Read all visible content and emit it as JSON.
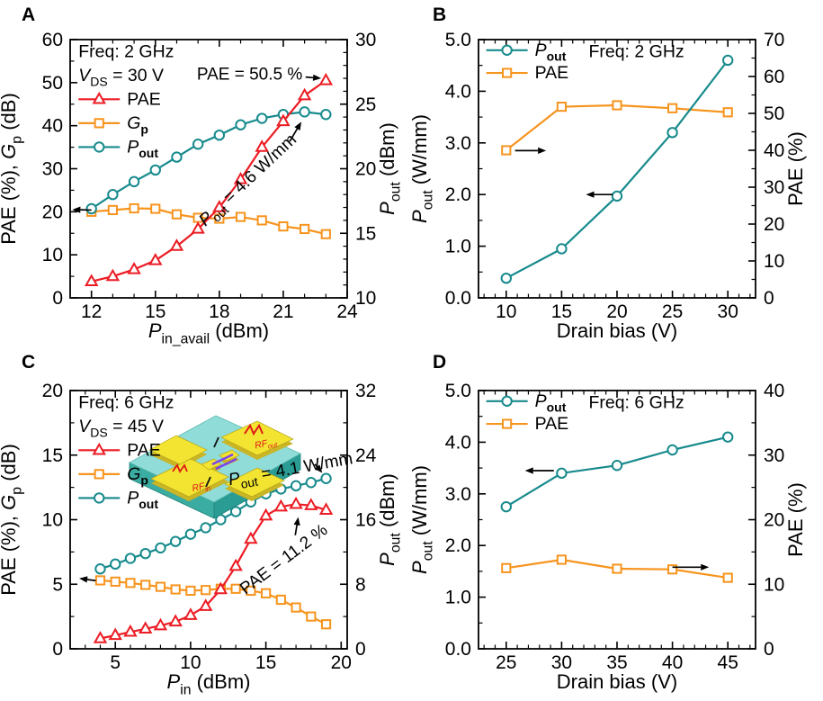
{
  "figure": {
    "background": "#ffffff",
    "text_color": "#000000"
  },
  "colors": {
    "pae_red": "#EC1C24",
    "gp_orange": "#F7941E",
    "pout_teal": "#178A8C",
    "annotation_black": "#000000"
  },
  "chart_data": [
    {
      "id": "A",
      "type": "line",
      "panel_texts": [
        {
          "plain": "Freq: 2 GHz",
          "segs": [
            [
              "Freq: 2 GHz",
              ""
            ]
          ],
          "fx": 0.03,
          "fy": 0.068,
          "anchor": "start"
        },
        {
          "plain": "V_DS = 30 V",
          "segs": [
            [
              "V",
              "i"
            ],
            [
              "DS",
              "s"
            ],
            [
              " = 30 V",
              ""
            ]
          ],
          "fx": 0.03,
          "fy": 0.16,
          "anchor": "start"
        }
      ],
      "x_axis": {
        "plain": "P_in_avail (dBm)",
        "segs": [
          [
            "P",
            "i"
          ],
          [
            "in_avail",
            "s"
          ],
          [
            " (dBm)",
            ""
          ]
        ],
        "lim": [
          11,
          24
        ],
        "majors": [
          12,
          15,
          18,
          21,
          24
        ],
        "minor_step": 1,
        "fmt": "int"
      },
      "y_left": {
        "plain": "PAE (%), G_p (dB)",
        "segs": [
          [
            "PAE (%), ",
            ""
          ],
          [
            "G",
            "i"
          ],
          [
            "p",
            "s"
          ],
          [
            " (dB)",
            ""
          ]
        ],
        "lim": [
          0,
          60
        ],
        "majors": [
          0,
          10,
          20,
          30,
          40,
          50,
          60
        ],
        "minor_step": 5,
        "fmt": "int"
      },
      "y_right": {
        "plain": "P_out (dBm)",
        "segs": [
          [
            "P",
            "i"
          ],
          [
            "out",
            "s"
          ],
          [
            " (dBm)",
            ""
          ]
        ],
        "lim": [
          10,
          30
        ],
        "majors": [
          10,
          15,
          20,
          25,
          30
        ],
        "minor_step": 1,
        "fmt": "int"
      },
      "series": [
        {
          "name": "PAE",
          "legend_segs": [
            [
              "PAE",
              ""
            ]
          ],
          "axis": "left",
          "marker": "triangle",
          "color_key": "pae_red",
          "z": 2,
          "x": [
            12,
            13,
            14,
            15,
            16,
            17,
            18,
            19,
            20,
            21,
            22,
            23
          ],
          "y": [
            3.8,
            5.0,
            6.6,
            8.7,
            12.0,
            16.0,
            21.0,
            27.5,
            35.0,
            41.0,
            47.0,
            50.5
          ]
        },
        {
          "name": "G_p",
          "legend_segs": [
            [
              "G",
              "i"
            ],
            [
              "p",
              "bs"
            ]
          ],
          "axis": "left",
          "marker": "square",
          "color_key": "gp_orange",
          "z": 0,
          "x": [
            12,
            13,
            14,
            15,
            16,
            17,
            18,
            19,
            20,
            21,
            22,
            23
          ],
          "y": [
            20.0,
            20.4,
            20.8,
            20.7,
            19.4,
            18.6,
            18.4,
            18.8,
            18.0,
            16.6,
            16.0,
            14.8
          ]
        },
        {
          "name": "P_out",
          "legend_segs": [
            [
              "P",
              "i"
            ],
            [
              "out",
              "bs"
            ]
          ],
          "axis": "right",
          "marker": "circle",
          "color_key": "pout_teal",
          "z": 1,
          "x": [
            12,
            13,
            14,
            15,
            16,
            17,
            18,
            19,
            20,
            21,
            22,
            23
          ],
          "y": [
            16.9,
            18.0,
            19.0,
            19.9,
            20.9,
            21.9,
            22.6,
            23.4,
            23.9,
            24.2,
            24.4,
            24.2
          ]
        }
      ],
      "legend": {
        "fx": 0.03,
        "fy": 0.252,
        "dfy": 0.0925
      },
      "annotations": [
        {
          "plain": "PAE = 50.5 %",
          "segs": [
            [
              "PAE = 50.5 %",
              ""
            ]
          ],
          "x": 21.9,
          "y": 50.7,
          "rot": 0,
          "anchor": "end"
        },
        {
          "plain": "P_out = 4.6 W/mm",
          "segs": [
            [
              "P",
              "i"
            ],
            [
              "out",
              "s"
            ],
            [
              " = 4.6 W/mm",
              ""
            ]
          ],
          "x": 19.5,
          "y": 26.5,
          "rot": -43,
          "anchor": "middle"
        }
      ],
      "arrows": [
        [
          22.05,
          51.3,
          22.78,
          51.0
        ],
        [
          21.3,
          36.3,
          21.85,
          40.9
        ],
        [
          12.0,
          20.4,
          11.1,
          20.5
        ]
      ]
    },
    {
      "id": "B",
      "type": "line",
      "panel_texts": [
        {
          "plain": "Freq: 2 GHz",
          "segs": [
            [
              "Freq: 2 GHz",
              ""
            ]
          ],
          "fx": 0.57,
          "fy": 0.068,
          "anchor": "middle"
        }
      ],
      "x_axis": {
        "plain": "Drain bias (V)",
        "segs": [
          [
            "Drain bias (V)",
            ""
          ]
        ],
        "lim": [
          7.5,
          32.5
        ],
        "majors": [
          10,
          15,
          20,
          25,
          30
        ],
        "minor_step": 1,
        "fmt": "int"
      },
      "y_left": {
        "plain": "P_out (W/mm)",
        "segs": [
          [
            "P",
            "i"
          ],
          [
            "out",
            "s"
          ],
          [
            " (W/mm)",
            ""
          ]
        ],
        "lim": [
          0,
          5
        ],
        "majors": [
          0,
          1,
          2,
          3,
          4,
          5
        ],
        "minor_step": 0.5,
        "fmt": "1f"
      },
      "y_right": {
        "plain": "PAE (%)",
        "segs": [
          [
            "PAE (%)",
            ""
          ]
        ],
        "lim": [
          0,
          70
        ],
        "majors": [
          0,
          10,
          20,
          30,
          40,
          50,
          60,
          70
        ],
        "minor_step": 5,
        "fmt": "int"
      },
      "series": [
        {
          "name": "P_out",
          "legend_segs": [
            [
              "P",
              "i"
            ],
            [
              "out",
              "bs"
            ]
          ],
          "axis": "left",
          "marker": "circle",
          "color_key": "pout_teal",
          "z": 1,
          "x": [
            10,
            15,
            20,
            25,
            30
          ],
          "y": [
            0.38,
            0.95,
            1.97,
            3.2,
            4.6
          ]
        },
        {
          "name": "PAE",
          "legend_segs": [
            [
              "PAE",
              ""
            ]
          ],
          "axis": "right",
          "marker": "square",
          "color_key": "gp_orange",
          "z": 0,
          "x": [
            10,
            15,
            20,
            25,
            30
          ],
          "y": [
            40.0,
            51.8,
            52.2,
            51.4,
            50.3
          ]
        }
      ],
      "legend": {
        "fx": 0.028,
        "fy": 0.062,
        "dfy": 0.088
      },
      "annotations": [],
      "arrows": [
        [
          10.8,
          2.85,
          13.6,
          2.85
        ],
        [
          19.6,
          2.0,
          17.2,
          2.0
        ]
      ]
    },
    {
      "id": "C",
      "type": "line",
      "panel_texts": [
        {
          "plain": "Freq: 6 GHz",
          "segs": [
            [
              "Freq: 6 GHz",
              ""
            ]
          ],
          "fx": 0.03,
          "fy": 0.068,
          "anchor": "start"
        },
        {
          "plain": "V_DS = 45 V",
          "segs": [
            [
              "V",
              "i"
            ],
            [
              "DS",
              "s"
            ],
            [
              " = 45 V",
              ""
            ]
          ],
          "fx": 0.03,
          "fy": 0.16,
          "anchor": "start"
        }
      ],
      "x_axis": {
        "plain": "P_in (dBm)",
        "segs": [
          [
            "P",
            "i"
          ],
          [
            "in",
            "s"
          ],
          [
            " (dBm)",
            ""
          ]
        ],
        "lim": [
          2,
          20.4
        ],
        "majors": [
          5,
          10,
          15,
          20
        ],
        "minor_step": 1,
        "fmt": "int"
      },
      "y_left": {
        "plain": "PAE (%), G_p (dB)",
        "segs": [
          [
            "PAE (%), ",
            ""
          ],
          [
            "G",
            "i"
          ],
          [
            "p",
            "s"
          ],
          [
            " (dB)",
            ""
          ]
        ],
        "lim": [
          0,
          20
        ],
        "majors": [
          0,
          5,
          10,
          15,
          20
        ],
        "minor_step": 2.5,
        "fmt": "int"
      },
      "y_right": {
        "plain": "P_out (dBm)",
        "segs": [
          [
            "P",
            "i"
          ],
          [
            "out",
            "s"
          ],
          [
            " (dBm)",
            ""
          ]
        ],
        "lim": [
          0,
          32
        ],
        "majors": [
          0,
          8,
          16,
          24,
          32
        ],
        "minor_step": 4,
        "fmt": "int"
      },
      "series": [
        {
          "name": "PAE",
          "legend_segs": [
            [
              "PAE",
              ""
            ]
          ],
          "axis": "left",
          "marker": "triangle",
          "color_key": "pae_red",
          "z": 2,
          "x": [
            4,
            5,
            6,
            7,
            8,
            9,
            10,
            11,
            12,
            13,
            14,
            15,
            16,
            17,
            18,
            19
          ],
          "y": [
            0.8,
            1.05,
            1.3,
            1.55,
            1.8,
            2.1,
            2.6,
            3.3,
            4.6,
            6.4,
            8.5,
            10.3,
            11.0,
            11.2,
            11.1,
            10.75
          ]
        },
        {
          "name": "G_p",
          "legend_segs": [
            [
              "G",
              "i"
            ],
            [
              "p",
              "bs"
            ]
          ],
          "axis": "left",
          "marker": "square",
          "color_key": "gp_orange",
          "z": 0,
          "x": [
            4,
            5,
            6,
            7,
            8,
            9,
            10,
            11,
            12,
            13,
            14,
            15,
            16,
            17,
            18,
            19
          ],
          "y": [
            5.3,
            5.2,
            5.1,
            4.95,
            4.8,
            4.6,
            4.5,
            4.55,
            4.65,
            4.65,
            4.5,
            4.3,
            3.8,
            3.2,
            2.5,
            1.9
          ]
        },
        {
          "name": "P_out",
          "legend_segs": [
            [
              "P",
              "i"
            ],
            [
              "out",
              "bs"
            ]
          ],
          "axis": "right",
          "marker": "circle",
          "color_key": "pout_teal",
          "z": 1,
          "x": [
            4,
            5,
            6,
            7,
            8,
            9,
            10,
            11,
            12,
            13,
            14,
            15,
            16,
            17,
            18,
            19
          ],
          "y": [
            9.9,
            10.5,
            11.2,
            11.8,
            12.5,
            13.3,
            14.2,
            15.0,
            16.0,
            17.0,
            18.2,
            19.2,
            19.8,
            20.2,
            20.6,
            21.1
          ]
        }
      ],
      "legend": {
        "fx": 0.03,
        "fy": 0.252,
        "dfy": 0.0925
      },
      "annotations": [
        {
          "plain": "P_out = 4.1 W/mm",
          "segs": [
            [
              "P",
              "i"
            ],
            [
              "out",
              "s"
            ],
            [
              " = 4.1 W/mm",
              ""
            ]
          ],
          "x": 16.7,
          "y": 13.5,
          "rot": -10,
          "anchor": "middle"
        },
        {
          "plain": "PAE = 11.2 %",
          "segs": [
            [
              "PAE = 11.2 %",
              ""
            ]
          ],
          "x": 16.4,
          "y": 6.6,
          "rot": -37,
          "anchor": "middle"
        }
      ],
      "arrows": [
        [
          18.25,
          14.3,
          18.75,
          13.62
        ],
        [
          16.95,
          8.8,
          17.15,
          10.2
        ],
        [
          3.7,
          5.28,
          2.6,
          5.45
        ]
      ],
      "inset": {
        "labels": [
          {
            "plain": "RF_in",
            "segs": [
              [
                "RF",
                "i"
              ],
              [
                "in",
                "is"
              ]
            ]
          },
          {
            "plain": "RF_out",
            "segs": [
              [
                "RF",
                "i"
              ],
              [
                "out",
                "is"
              ]
            ]
          }
        ],
        "colors": {
          "substrate_top": "#8FDCD8",
          "substrate_side_left": "#3AACA2",
          "substrate_side_right": "#2A9C93",
          "substrate_edge": "#1E8179",
          "pad": "#F2E431",
          "pad_side": "#C9B525",
          "pad_edge": "#B8A51A",
          "wire_purple": "#7B3FF2",
          "rf_label_red": "#E01818"
        }
      }
    },
    {
      "id": "D",
      "type": "line",
      "panel_texts": [
        {
          "plain": "Freq: 6 GHz",
          "segs": [
            [
              "Freq: 6 GHz",
              ""
            ]
          ],
          "fx": 0.57,
          "fy": 0.068,
          "anchor": "middle"
        }
      ],
      "x_axis": {
        "plain": "Drain bias (V)",
        "segs": [
          [
            "Drain bias (V)",
            ""
          ]
        ],
        "lim": [
          22.5,
          47.5
        ],
        "majors": [
          25,
          30,
          35,
          40,
          45
        ],
        "minor_step": 1,
        "fmt": "int"
      },
      "y_left": {
        "plain": "P_out (W/mm)",
        "segs": [
          [
            "P",
            "i"
          ],
          [
            "out",
            "s"
          ],
          [
            " (W/mm)",
            ""
          ]
        ],
        "lim": [
          0,
          5
        ],
        "majors": [
          0,
          1,
          2,
          3,
          4,
          5
        ],
        "minor_step": 0.5,
        "fmt": "1f"
      },
      "y_right": {
        "plain": "PAE (%)",
        "segs": [
          [
            "PAE (%)",
            ""
          ]
        ],
        "lim": [
          0,
          40
        ],
        "majors": [
          0,
          10,
          20,
          30,
          40
        ],
        "minor_step": 5,
        "fmt": "int"
      },
      "series": [
        {
          "name": "P_out",
          "legend_segs": [
            [
              "P",
              "i"
            ],
            [
              "out",
              "bs"
            ]
          ],
          "axis": "left",
          "marker": "circle",
          "color_key": "pout_teal",
          "z": 1,
          "x": [
            25,
            30,
            35,
            40,
            45
          ],
          "y": [
            2.75,
            3.4,
            3.55,
            3.85,
            4.1
          ]
        },
        {
          "name": "PAE",
          "legend_segs": [
            [
              "PAE",
              ""
            ]
          ],
          "axis": "right",
          "marker": "square",
          "color_key": "gp_orange",
          "z": 0,
          "x": [
            25,
            30,
            35,
            40,
            45
          ],
          "y": [
            12.5,
            13.8,
            12.4,
            12.3,
            11.0
          ]
        }
      ],
      "legend": {
        "fx": 0.028,
        "fy": 0.062,
        "dfy": 0.088
      },
      "annotations": [],
      "arrows": [
        [
          29.3,
          3.45,
          26.7,
          3.45
        ],
        [
          40.0,
          1.58,
          43.3,
          1.58
        ]
      ]
    }
  ]
}
